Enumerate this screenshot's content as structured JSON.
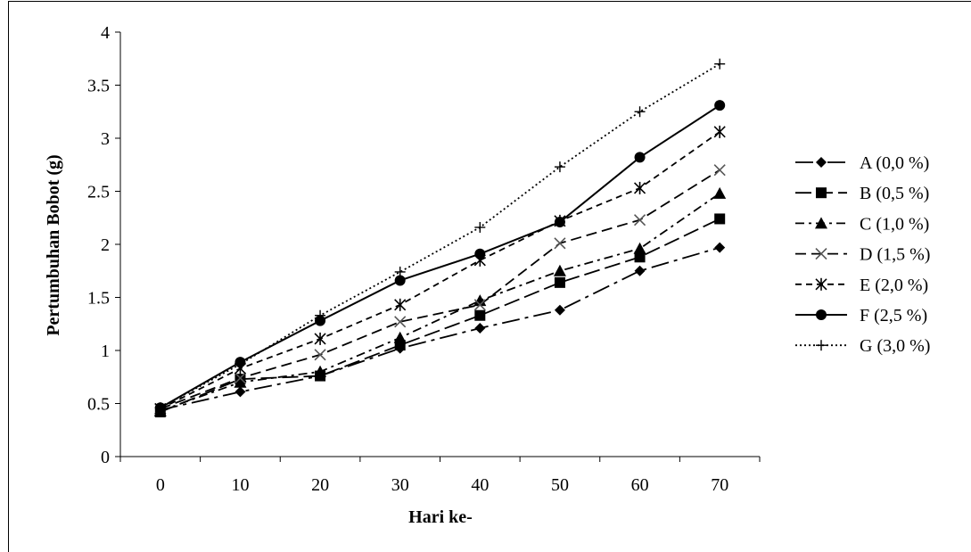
{
  "chart_data": {
    "type": "line",
    "title": "",
    "xlabel": "Hari ke-",
    "ylabel": "Pertumbuhan  Bobot  (g)",
    "x": [
      0,
      10,
      20,
      30,
      40,
      50,
      60,
      70
    ],
    "x_tick_labels": [
      "0",
      "10",
      "20",
      "30",
      "40",
      "50",
      "60",
      "70"
    ],
    "y_tick_labels": [
      "0",
      "0.5",
      "1",
      "1.5",
      "2",
      "2.5",
      "3",
      "3.5",
      "4"
    ],
    "ylim": [
      0,
      4
    ],
    "grid": false,
    "legend_position": "right",
    "series": [
      {
        "name": "A (0,0 %)",
        "marker": "diamond",
        "dash": "long-dash-dot",
        "values": [
          0.44,
          0.61,
          0.76,
          1.02,
          1.21,
          1.38,
          1.75,
          1.97
        ]
      },
      {
        "name": "B (0,5 %)",
        "marker": "square",
        "dash": "long-dash",
        "values": [
          0.42,
          0.73,
          0.76,
          1.05,
          1.33,
          1.64,
          1.88,
          2.24
        ]
      },
      {
        "name": "C (1,0 %)",
        "marker": "triangle",
        "dash": "dash-dot",
        "values": [
          0.43,
          0.7,
          0.8,
          1.12,
          1.47,
          1.75,
          1.96,
          2.48
        ]
      },
      {
        "name": "D (1,5 %)",
        "marker": "x",
        "dash": "dash",
        "values": [
          0.45,
          0.74,
          0.96,
          1.27,
          1.43,
          2.01,
          2.23,
          2.7
        ]
      },
      {
        "name": "E (2,0 %)",
        "marker": "asterisk",
        "dash": "short-dash",
        "values": [
          0.45,
          0.83,
          1.11,
          1.43,
          1.85,
          2.22,
          2.53,
          3.06
        ]
      },
      {
        "name": "F (2,5 %)",
        "marker": "circle",
        "dash": "solid",
        "values": [
          0.46,
          0.89,
          1.28,
          1.66,
          1.91,
          2.21,
          2.82,
          3.31
        ]
      },
      {
        "name": "G (3,0 %)",
        "marker": "plus",
        "dash": "dotted",
        "values": [
          0.46,
          0.87,
          1.33,
          1.74,
          2.16,
          2.73,
          3.25,
          3.7
        ]
      }
    ]
  }
}
